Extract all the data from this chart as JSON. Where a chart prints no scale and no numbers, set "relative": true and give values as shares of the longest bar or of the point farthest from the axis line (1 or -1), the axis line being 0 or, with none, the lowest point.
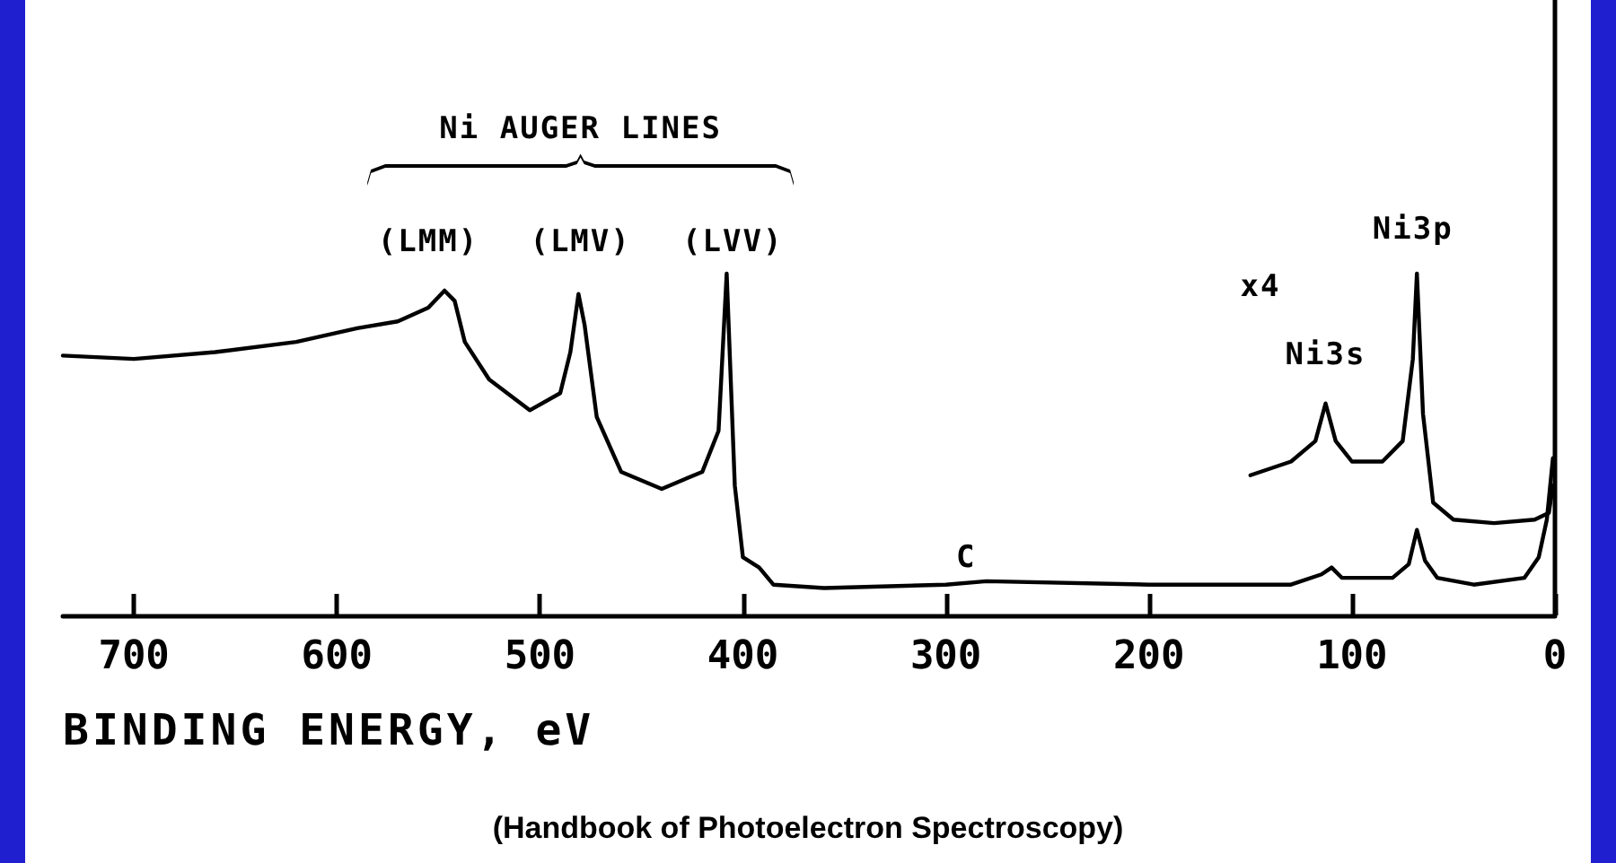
{
  "chart_data": {
    "type": "line",
    "relative": true,
    "xlabel": "BINDING ENERGY, eV",
    "xlim": [
      735,
      0
    ],
    "xticks": [
      700,
      600,
      500,
      400,
      300,
      200,
      100,
      0
    ],
    "grid": false,
    "marker": "none",
    "line_style": "solid",
    "series": [
      {
        "color": "#000000",
        "x": [
          735,
          700,
          660,
          620,
          590,
          570,
          555,
          547,
          542,
          537,
          525,
          505,
          490,
          485,
          481,
          478,
          472,
          460,
          440,
          420,
          412,
          408,
          404,
          400,
          392,
          385,
          360,
          300,
          280,
          200,
          130,
          115,
          110,
          105,
          80,
          72,
          68,
          64,
          58,
          40,
          15,
          8,
          4,
          1
        ],
        "values": [
          0.76,
          0.75,
          0.77,
          0.8,
          0.84,
          0.86,
          0.9,
          0.95,
          0.92,
          0.8,
          0.69,
          0.6,
          0.65,
          0.77,
          0.94,
          0.85,
          0.58,
          0.42,
          0.37,
          0.42,
          0.54,
          1.0,
          0.38,
          0.17,
          0.14,
          0.09,
          0.08,
          0.09,
          0.1,
          0.09,
          0.09,
          0.12,
          0.14,
          0.11,
          0.11,
          0.15,
          0.25,
          0.16,
          0.11,
          0.09,
          0.11,
          0.17,
          0.28,
          0.46
        ]
      },
      {
        "color": "#000000",
        "x": [
          150,
          130,
          118,
          113,
          108,
          100,
          85,
          75,
          70,
          68,
          65,
          60,
          50,
          30,
          10,
          3,
          1
        ],
        "values": [
          0.41,
          0.45,
          0.51,
          0.62,
          0.51,
          0.45,
          0.45,
          0.51,
          0.75,
          1.0,
          0.59,
          0.33,
          0.28,
          0.27,
          0.28,
          0.3,
          0.38
        ]
      }
    ],
    "annotations": [
      "Ni AUGER LINES",
      "(LMM)",
      "(LMV)",
      "(LVV)",
      "C",
      "x4",
      "Ni3s",
      "Ni3p",
      "(Handbook of Photoelectron Spectroscopy)"
    ]
  }
}
